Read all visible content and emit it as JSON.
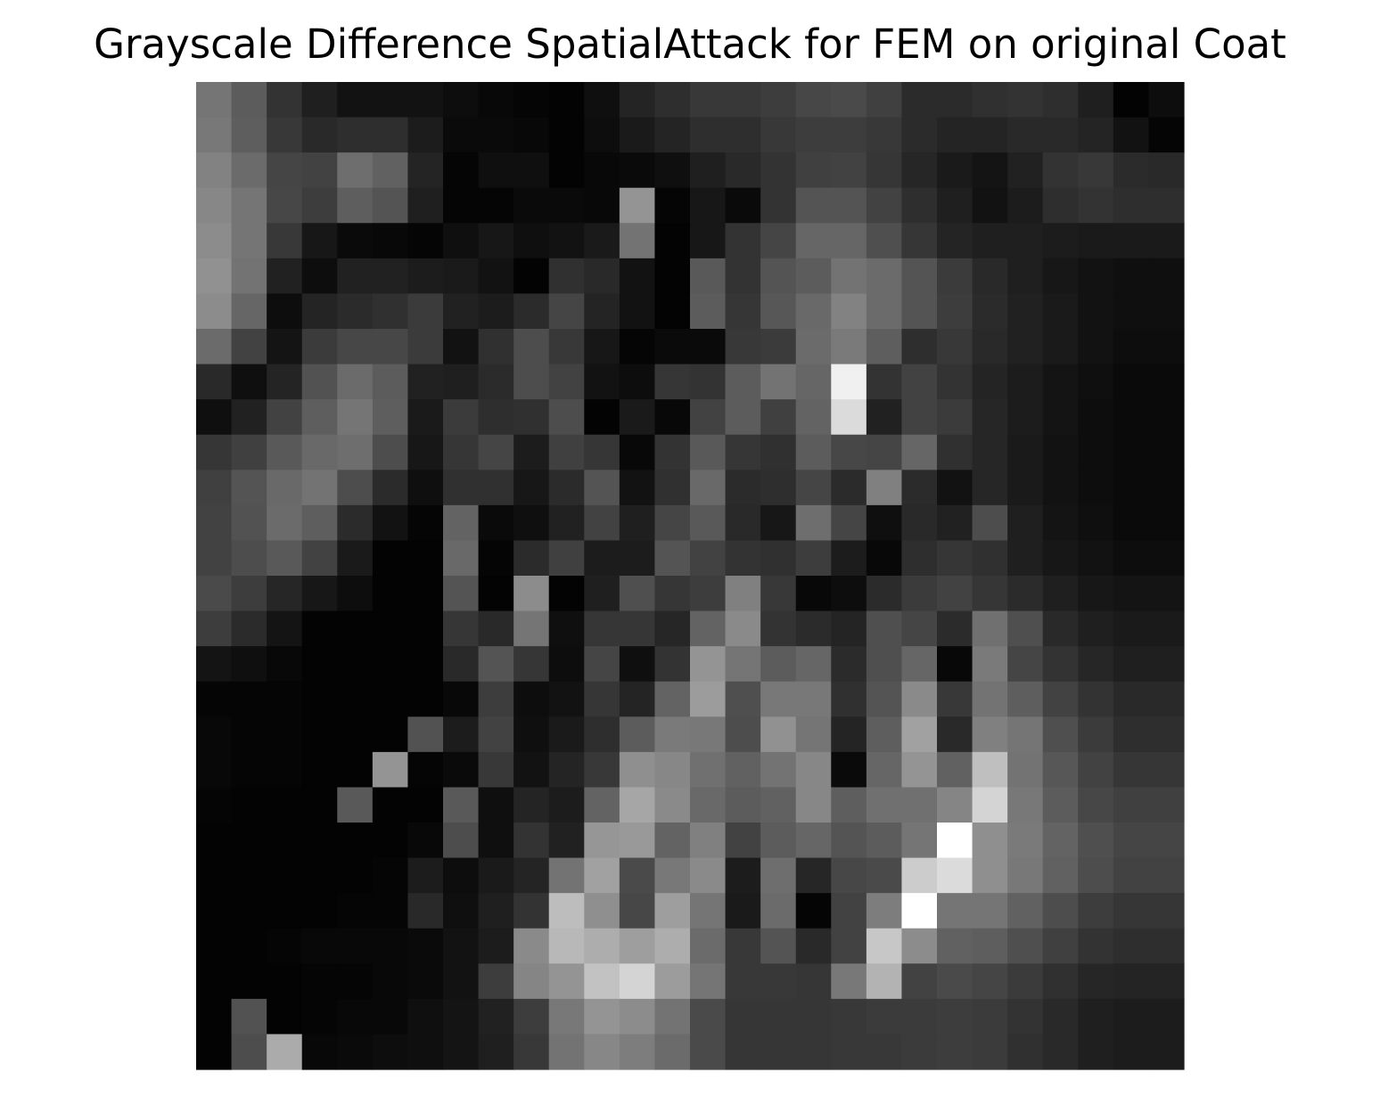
{
  "chart_data": {
    "type": "heatmap",
    "title": "Grayscale Difference SpatialAttack for FEM on original Coat",
    "colormap": "gray",
    "axes_visible": false,
    "rows": 28,
    "cols": 28,
    "values": [
      [
        0.46,
        0.36,
        0.2,
        0.12,
        0.07,
        0.07,
        0.07,
        0.05,
        0.03,
        0.02,
        0.01,
        0.06,
        0.14,
        0.18,
        0.22,
        0.22,
        0.24,
        0.28,
        0.29,
        0.25,
        0.17,
        0.17,
        0.19,
        0.2,
        0.18,
        0.12,
        0.01,
        0.05
      ],
      [
        0.47,
        0.37,
        0.22,
        0.16,
        0.18,
        0.18,
        0.11,
        0.04,
        0.04,
        0.03,
        0.01,
        0.05,
        0.1,
        0.14,
        0.18,
        0.18,
        0.22,
        0.24,
        0.24,
        0.22,
        0.17,
        0.14,
        0.14,
        0.16,
        0.16,
        0.14,
        0.07,
        0.02
      ],
      [
        0.51,
        0.42,
        0.27,
        0.26,
        0.43,
        0.38,
        0.14,
        0.02,
        0.06,
        0.06,
        0.01,
        0.03,
        0.04,
        0.06,
        0.12,
        0.16,
        0.2,
        0.25,
        0.26,
        0.21,
        0.15,
        0.1,
        0.08,
        0.13,
        0.2,
        0.22,
        0.17,
        0.16
      ],
      [
        0.53,
        0.46,
        0.28,
        0.24,
        0.37,
        0.33,
        0.12,
        0.02,
        0.02,
        0.04,
        0.04,
        0.03,
        0.58,
        0.02,
        0.09,
        0.04,
        0.2,
        0.33,
        0.33,
        0.26,
        0.18,
        0.12,
        0.07,
        0.11,
        0.18,
        0.2,
        0.18,
        0.18
      ],
      [
        0.55,
        0.46,
        0.22,
        0.09,
        0.04,
        0.03,
        0.02,
        0.06,
        0.09,
        0.06,
        0.07,
        0.1,
        0.45,
        0.01,
        0.09,
        0.2,
        0.27,
        0.4,
        0.4,
        0.31,
        0.21,
        0.14,
        0.12,
        0.12,
        0.11,
        0.1,
        0.1,
        0.1
      ],
      [
        0.57,
        0.45,
        0.13,
        0.05,
        0.13,
        0.13,
        0.11,
        0.1,
        0.07,
        0.01,
        0.19,
        0.16,
        0.07,
        0.01,
        0.35,
        0.2,
        0.33,
        0.36,
        0.45,
        0.42,
        0.33,
        0.23,
        0.16,
        0.12,
        0.09,
        0.07,
        0.06,
        0.06
      ],
      [
        0.55,
        0.4,
        0.05,
        0.14,
        0.17,
        0.19,
        0.23,
        0.13,
        0.11,
        0.17,
        0.27,
        0.14,
        0.07,
        0.01,
        0.36,
        0.21,
        0.34,
        0.41,
        0.51,
        0.42,
        0.33,
        0.24,
        0.17,
        0.13,
        0.1,
        0.07,
        0.06,
        0.06
      ],
      [
        0.42,
        0.26,
        0.08,
        0.23,
        0.28,
        0.28,
        0.23,
        0.07,
        0.19,
        0.3,
        0.22,
        0.09,
        0.02,
        0.04,
        0.04,
        0.22,
        0.23,
        0.42,
        0.48,
        0.37,
        0.18,
        0.22,
        0.16,
        0.13,
        0.1,
        0.07,
        0.05,
        0.05
      ],
      [
        0.16,
        0.06,
        0.14,
        0.32,
        0.42,
        0.36,
        0.13,
        0.12,
        0.17,
        0.3,
        0.26,
        0.07,
        0.05,
        0.21,
        0.2,
        0.36,
        0.45,
        0.4,
        0.94,
        0.2,
        0.26,
        0.2,
        0.14,
        0.11,
        0.08,
        0.06,
        0.04,
        0.04
      ],
      [
        0.06,
        0.13,
        0.26,
        0.37,
        0.46,
        0.37,
        0.1,
        0.23,
        0.18,
        0.19,
        0.3,
        0.01,
        0.1,
        0.03,
        0.26,
        0.36,
        0.25,
        0.39,
        0.86,
        0.13,
        0.26,
        0.23,
        0.15,
        0.11,
        0.08,
        0.05,
        0.04,
        0.04
      ],
      [
        0.21,
        0.25,
        0.35,
        0.41,
        0.43,
        0.3,
        0.09,
        0.21,
        0.27,
        0.11,
        0.25,
        0.21,
        0.03,
        0.2,
        0.35,
        0.21,
        0.19,
        0.36,
        0.28,
        0.27,
        0.4,
        0.19,
        0.15,
        0.1,
        0.07,
        0.05,
        0.04,
        0.04
      ],
      [
        0.25,
        0.33,
        0.41,
        0.45,
        0.3,
        0.17,
        0.06,
        0.19,
        0.19,
        0.09,
        0.17,
        0.33,
        0.07,
        0.19,
        0.41,
        0.17,
        0.18,
        0.27,
        0.17,
        0.5,
        0.17,
        0.07,
        0.15,
        0.1,
        0.07,
        0.05,
        0.04,
        0.04
      ],
      [
        0.26,
        0.32,
        0.42,
        0.37,
        0.17,
        0.07,
        0.02,
        0.39,
        0.04,
        0.06,
        0.13,
        0.26,
        0.12,
        0.27,
        0.35,
        0.16,
        0.09,
        0.43,
        0.27,
        0.06,
        0.16,
        0.13,
        0.3,
        0.12,
        0.08,
        0.06,
        0.04,
        0.04
      ],
      [
        0.26,
        0.3,
        0.35,
        0.26,
        0.1,
        0.01,
        0.01,
        0.41,
        0.02,
        0.17,
        0.25,
        0.11,
        0.11,
        0.33,
        0.26,
        0.2,
        0.19,
        0.24,
        0.11,
        0.03,
        0.18,
        0.21,
        0.19,
        0.12,
        0.09,
        0.07,
        0.05,
        0.05
      ],
      [
        0.29,
        0.24,
        0.15,
        0.09,
        0.05,
        0.01,
        0.01,
        0.33,
        0.01,
        0.55,
        0.01,
        0.12,
        0.31,
        0.21,
        0.24,
        0.5,
        0.22,
        0.03,
        0.05,
        0.17,
        0.23,
        0.26,
        0.21,
        0.17,
        0.12,
        0.09,
        0.08,
        0.08
      ],
      [
        0.24,
        0.17,
        0.08,
        0.01,
        0.01,
        0.01,
        0.01,
        0.21,
        0.16,
        0.46,
        0.06,
        0.21,
        0.21,
        0.15,
        0.39,
        0.54,
        0.2,
        0.17,
        0.14,
        0.31,
        0.27,
        0.17,
        0.44,
        0.31,
        0.16,
        0.12,
        0.1,
        0.1
      ],
      [
        0.08,
        0.06,
        0.03,
        0.01,
        0.01,
        0.01,
        0.01,
        0.16,
        0.33,
        0.21,
        0.05,
        0.27,
        0.06,
        0.2,
        0.58,
        0.46,
        0.36,
        0.4,
        0.17,
        0.31,
        0.4,
        0.03,
        0.48,
        0.27,
        0.2,
        0.15,
        0.12,
        0.12
      ],
      [
        0.02,
        0.02,
        0.02,
        0.01,
        0.01,
        0.01,
        0.01,
        0.03,
        0.24,
        0.05,
        0.07,
        0.21,
        0.14,
        0.39,
        0.61,
        0.31,
        0.47,
        0.47,
        0.19,
        0.33,
        0.54,
        0.22,
        0.45,
        0.37,
        0.26,
        0.2,
        0.16,
        0.16
      ],
      [
        0.03,
        0.02,
        0.02,
        0.01,
        0.01,
        0.01,
        0.32,
        0.11,
        0.26,
        0.06,
        0.1,
        0.18,
        0.36,
        0.48,
        0.47,
        0.3,
        0.57,
        0.46,
        0.14,
        0.37,
        0.63,
        0.16,
        0.5,
        0.46,
        0.31,
        0.23,
        0.18,
        0.18
      ],
      [
        0.03,
        0.02,
        0.02,
        0.01,
        0.01,
        0.58,
        0.02,
        0.04,
        0.22,
        0.07,
        0.14,
        0.22,
        0.56,
        0.53,
        0.44,
        0.38,
        0.45,
        0.53,
        0.04,
        0.4,
        0.58,
        0.38,
        0.75,
        0.45,
        0.34,
        0.26,
        0.21,
        0.21
      ],
      [
        0.02,
        0.01,
        0.01,
        0.01,
        0.35,
        0.01,
        0.01,
        0.35,
        0.06,
        0.14,
        0.11,
        0.39,
        0.65,
        0.54,
        0.41,
        0.36,
        0.38,
        0.53,
        0.37,
        0.44,
        0.44,
        0.52,
        0.83,
        0.47,
        0.36,
        0.28,
        0.25,
        0.25
      ],
      [
        0.01,
        0.01,
        0.01,
        0.01,
        0.01,
        0.01,
        0.03,
        0.3,
        0.06,
        0.2,
        0.13,
        0.59,
        0.6,
        0.39,
        0.5,
        0.26,
        0.36,
        0.4,
        0.33,
        0.36,
        0.46,
        1.0,
        0.56,
        0.48,
        0.39,
        0.31,
        0.27,
        0.27
      ],
      [
        0.01,
        0.01,
        0.01,
        0.01,
        0.01,
        0.02,
        0.11,
        0.05,
        0.1,
        0.14,
        0.45,
        0.63,
        0.29,
        0.47,
        0.54,
        0.11,
        0.43,
        0.15,
        0.28,
        0.29,
        0.8,
        0.86,
        0.56,
        0.47,
        0.38,
        0.3,
        0.26,
        0.26
      ],
      [
        0.01,
        0.01,
        0.01,
        0.01,
        0.02,
        0.02,
        0.16,
        0.06,
        0.12,
        0.2,
        0.74,
        0.56,
        0.28,
        0.62,
        0.46,
        0.1,
        0.42,
        0.02,
        0.26,
        0.49,
        1.0,
        0.46,
        0.46,
        0.38,
        0.3,
        0.24,
        0.21,
        0.21
      ],
      [
        0.01,
        0.01,
        0.02,
        0.03,
        0.03,
        0.03,
        0.04,
        0.07,
        0.11,
        0.54,
        0.72,
        0.68,
        0.62,
        0.68,
        0.42,
        0.22,
        0.33,
        0.16,
        0.26,
        0.78,
        0.55,
        0.38,
        0.37,
        0.31,
        0.25,
        0.2,
        0.18,
        0.18
      ],
      [
        0.01,
        0.01,
        0.01,
        0.02,
        0.02,
        0.03,
        0.04,
        0.07,
        0.24,
        0.52,
        0.58,
        0.76,
        0.83,
        0.61,
        0.46,
        0.22,
        0.22,
        0.21,
        0.47,
        0.7,
        0.26,
        0.29,
        0.27,
        0.23,
        0.19,
        0.15,
        0.14,
        0.14
      ],
      [
        0.01,
        0.32,
        0.01,
        0.02,
        0.03,
        0.03,
        0.06,
        0.08,
        0.13,
        0.24,
        0.47,
        0.58,
        0.55,
        0.45,
        0.29,
        0.21,
        0.21,
        0.21,
        0.22,
        0.23,
        0.23,
        0.24,
        0.23,
        0.2,
        0.16,
        0.12,
        0.11,
        0.11
      ],
      [
        0.01,
        0.3,
        0.67,
        0.03,
        0.04,
        0.05,
        0.06,
        0.08,
        0.12,
        0.22,
        0.45,
        0.53,
        0.49,
        0.42,
        0.29,
        0.21,
        0.21,
        0.21,
        0.22,
        0.22,
        0.23,
        0.24,
        0.23,
        0.19,
        0.16,
        0.12,
        0.11,
        0.11
      ]
    ]
  }
}
